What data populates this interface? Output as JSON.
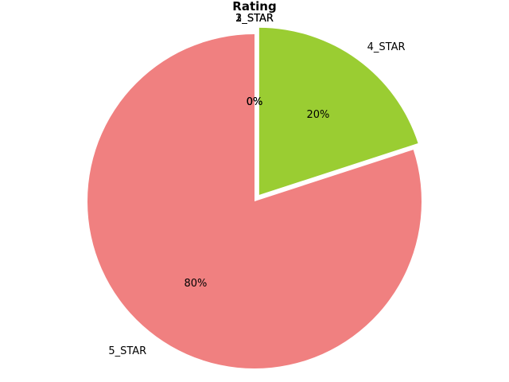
{
  "chart_data": {
    "type": "pie",
    "title": "Rating",
    "slices": [
      {
        "label": "5_STAR",
        "value": 80,
        "pct_label": "80%",
        "color": "#f08080",
        "exploded": false
      },
      {
        "label": "4_STAR",
        "value": 20,
        "pct_label": "20%",
        "color": "#9acd32",
        "exploded": true
      },
      {
        "label": "1_STAR",
        "value": 0,
        "pct_label": "0%",
        "color": "#87ceeb",
        "exploded": false
      },
      {
        "label": "2_STAR",
        "value": 0,
        "pct_label": "0%",
        "color": "#ffd700",
        "exploded": false
      },
      {
        "label": "3_STAR",
        "value": 0,
        "pct_label": "0%",
        "color": "#dda0dd",
        "exploded": false
      }
    ],
    "start_angle": 90,
    "direction": "counterclockwise",
    "legend": "none"
  }
}
